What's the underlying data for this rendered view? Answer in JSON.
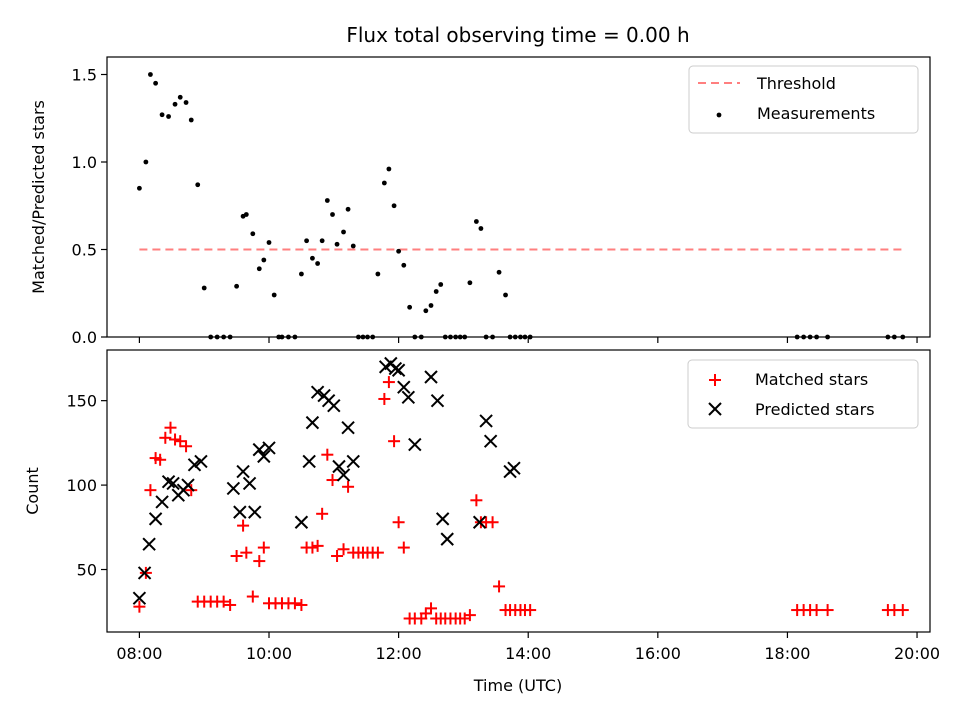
{
  "chart_data": [
    {
      "type": "scatter",
      "title": "Flux total observing time = 0.00 h",
      "xlabel": "",
      "ylabel": "Matched/Predicted stars",
      "xlim": [
        7.5,
        20.2
      ],
      "ylim": [
        0,
        1.6
      ],
      "yticks": [
        0.0,
        0.5,
        1.0,
        1.5
      ],
      "ytick_labels": [
        "0.0",
        "0.5",
        "1.0",
        "1.5"
      ],
      "legend_position": "top-right",
      "grid": false,
      "series": [
        {
          "name": "Threshold",
          "kind": "line",
          "style": "dashed",
          "color": "#ff7f7f",
          "x": [
            8.0,
            19.8
          ],
          "y": [
            0.5,
            0.5
          ]
        },
        {
          "name": "Measurements",
          "kind": "scatter",
          "color": "#000000",
          "x": [
            8.0,
            8.1,
            8.17,
            8.25,
            8.35,
            8.45,
            8.55,
            8.63,
            8.72,
            8.8,
            8.9,
            9.0,
            9.1,
            9.2,
            9.3,
            9.4,
            9.5,
            9.6,
            9.65,
            9.75,
            9.85,
            9.92,
            10.0,
            10.08,
            10.15,
            10.2,
            10.3,
            10.4,
            10.5,
            10.58,
            10.67,
            10.75,
            10.82,
            10.9,
            10.98,
            11.05,
            11.15,
            11.22,
            11.3,
            11.38,
            11.45,
            11.52,
            11.6,
            11.68,
            11.78,
            11.85,
            11.93,
            12.0,
            12.08,
            12.17,
            12.25,
            12.35,
            12.42,
            12.5,
            12.58,
            12.65,
            12.72,
            12.8,
            12.88,
            12.95,
            13.02,
            13.1,
            13.2,
            13.27,
            13.35,
            13.45,
            13.55,
            13.65,
            13.72,
            13.8,
            13.88,
            13.95,
            14.03,
            18.15,
            18.25,
            18.35,
            18.45,
            18.62,
            19.55,
            19.65,
            19.78
          ],
          "y": [
            0.85,
            1.0,
            1.5,
            1.45,
            1.27,
            1.26,
            1.33,
            1.37,
            1.34,
            1.24,
            0.87,
            0.28,
            0.0,
            0.0,
            0.0,
            0.0,
            0.29,
            0.69,
            0.7,
            0.59,
            0.39,
            0.44,
            0.54,
            0.24,
            0.0,
            0.0,
            0.0,
            0.0,
            0.36,
            0.55,
            0.45,
            0.42,
            0.55,
            0.78,
            0.7,
            0.53,
            0.6,
            0.73,
            0.52,
            0.0,
            0.0,
            0.0,
            0.0,
            0.36,
            0.88,
            0.96,
            0.75,
            0.49,
            0.41,
            0.17,
            0.0,
            0.0,
            0.15,
            0.18,
            0.26,
            0.3,
            0.0,
            0.0,
            0.0,
            0.0,
            0.0,
            0.31,
            0.66,
            0.62,
            0.0,
            0.0,
            0.37,
            0.24,
            0.0,
            0.0,
            0.0,
            0.0,
            0.0,
            0.0,
            0.0,
            0.0,
            0.0,
            0.0,
            0.0,
            0.0,
            0.0
          ]
        }
      ]
    },
    {
      "type": "scatter",
      "title": "",
      "xlabel": "Time (UTC)",
      "ylabel": "Count",
      "xlim": [
        7.5,
        20.2
      ],
      "ylim": [
        13,
        180
      ],
      "yticks": [
        50,
        100,
        150
      ],
      "ytick_labels": [
        "50",
        "100",
        "150"
      ],
      "xticks": [
        8,
        10,
        12,
        14,
        16,
        18,
        20
      ],
      "xtick_labels": [
        "08:00",
        "10:00",
        "12:00",
        "14:00",
        "16:00",
        "18:00",
        "20:00"
      ],
      "legend_position": "top-right",
      "grid": false,
      "series": [
        {
          "name": "Matched stars",
          "kind": "scatter",
          "marker": "+",
          "color": "#ff0000",
          "x": [
            8.0,
            8.1,
            8.17,
            8.25,
            8.32,
            8.4,
            8.48,
            8.55,
            8.63,
            8.72,
            8.8,
            8.9,
            9.0,
            9.1,
            9.2,
            9.3,
            9.4,
            9.5,
            9.6,
            9.65,
            9.75,
            9.85,
            9.92,
            10.0,
            10.1,
            10.2,
            10.3,
            10.4,
            10.5,
            10.58,
            10.67,
            10.75,
            10.82,
            10.9,
            10.98,
            11.05,
            11.15,
            11.22,
            11.3,
            11.38,
            11.45,
            11.52,
            11.6,
            11.68,
            11.78,
            11.85,
            11.93,
            12.0,
            12.08,
            12.17,
            12.25,
            12.35,
            12.42,
            12.5,
            12.58,
            12.65,
            12.72,
            12.8,
            12.88,
            12.95,
            13.02,
            13.1,
            13.2,
            13.27,
            13.35,
            13.45,
            13.55,
            13.65,
            13.72,
            13.8,
            13.88,
            13.95,
            14.03,
            18.15,
            18.25,
            18.35,
            18.45,
            18.62,
            19.55,
            19.65,
            19.78
          ],
          "y": [
            28,
            48,
            97,
            116,
            115,
            128,
            134,
            127,
            126,
            123,
            97,
            31,
            31,
            31,
            31,
            31,
            29,
            58,
            76,
            60,
            34,
            55,
            63,
            30,
            30,
            30,
            30,
            30,
            29,
            63,
            63,
            64,
            83,
            118,
            103,
            58,
            62,
            99,
            60,
            60,
            60,
            60,
            60,
            60,
            151,
            161,
            126,
            78,
            63,
            21,
            21,
            21,
            24,
            27,
            21,
            21,
            21,
            21,
            21,
            21,
            21,
            23,
            91,
            78,
            78,
            78,
            40,
            26,
            26,
            26,
            26,
            26,
            26,
            26,
            26,
            26,
            26,
            26,
            26,
            26,
            26
          ]
        },
        {
          "name": "Predicted stars",
          "kind": "scatter",
          "marker": "x",
          "color": "#000000",
          "x": [
            8.0,
            8.08,
            8.15,
            8.25,
            8.35,
            8.45,
            8.52,
            8.6,
            8.68,
            8.75,
            8.85,
            8.95,
            9.45,
            9.55,
            9.6,
            9.7,
            9.78,
            9.85,
            9.92,
            10.0,
            10.5,
            10.62,
            10.67,
            10.75,
            10.85,
            10.92,
            11.0,
            11.08,
            11.15,
            11.22,
            11.3,
            11.8,
            11.88,
            11.95,
            12.0,
            12.08,
            12.15,
            12.25,
            12.5,
            12.6,
            12.68,
            12.75,
            13.25,
            13.35,
            13.42,
            13.72,
            13.78
          ],
          "y": [
            33,
            48,
            65,
            80,
            90,
            102,
            101,
            94,
            97,
            100,
            112,
            114,
            98,
            84,
            108,
            101,
            84,
            121,
            117,
            122,
            78,
            114,
            137,
            155,
            153,
            150,
            147,
            111,
            106,
            134,
            114,
            170,
            172,
            169,
            168,
            158,
            152,
            124,
            164,
            150,
            80,
            68,
            78,
            138,
            126,
            108,
            110
          ]
        }
      ]
    }
  ]
}
